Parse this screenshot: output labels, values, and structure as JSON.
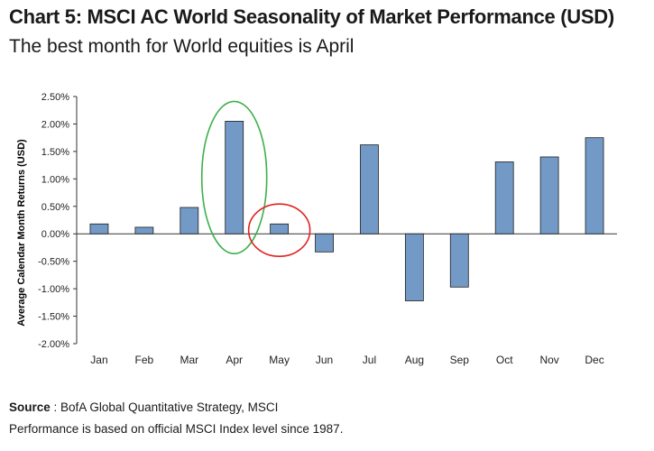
{
  "header": {
    "title": "Chart 5: MSCI AC World Seasonality of Market Performance (USD)",
    "subtitle": "The best month for World equities is April"
  },
  "footer": {
    "source_label": "Source",
    "source_text": ": BofA Global Quantitative Strategy, MSCI",
    "note": "Performance is based on official MSCI Index level since 1987."
  },
  "colors": {
    "bar_fill": "#7399c6",
    "bar_stroke": "#1f1f1f",
    "highlight_green": "#3cb04a",
    "highlight_red": "#e02424"
  },
  "chart_data": {
    "type": "bar",
    "categories": [
      "Jan",
      "Feb",
      "Mar",
      "Apr",
      "May",
      "Jun",
      "Jul",
      "Aug",
      "Sep",
      "Oct",
      "Nov",
      "Dec"
    ],
    "values": [
      0.18,
      0.12,
      0.48,
      2.05,
      0.18,
      -0.33,
      1.62,
      -1.22,
      -0.97,
      1.31,
      1.4,
      1.75
    ],
    "ylabel": "Average Calendar Month Returns (USD)",
    "ylim": [
      -2.0,
      2.5
    ],
    "yticks": [
      "2.50%",
      "2.00%",
      "1.50%",
      "1.00%",
      "0.50%",
      "0.00%",
      "-0.50%",
      "-1.00%",
      "-1.50%",
      "-2.00%"
    ],
    "ytick_values": [
      2.5,
      2.0,
      1.5,
      1.0,
      0.5,
      0.0,
      -0.5,
      -1.0,
      -1.5,
      -2.0
    ],
    "grid": false,
    "legend": "none",
    "annotations": [
      {
        "type": "ellipse",
        "category": "Apr",
        "color": "green"
      },
      {
        "type": "ellipse",
        "category": "May",
        "color": "red"
      }
    ]
  }
}
